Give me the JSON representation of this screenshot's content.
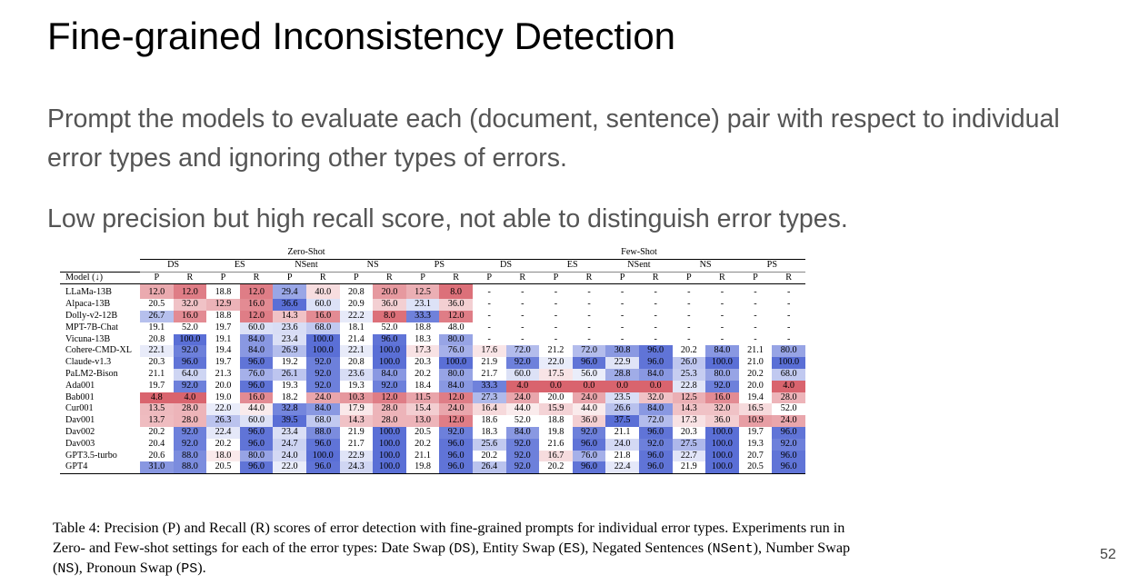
{
  "slide": {
    "title": "Fine-grained Inconsistency Detection",
    "bullet1": "Prompt the models to evaluate each (document, sentence) pair with respect to individual error types and ignoring other types of errors.",
    "bullet2": "Low precision but high recall score, not able to distinguish error types.",
    "page_number": "52"
  },
  "table": {
    "groups": [
      "Zero-Shot",
      "Few-Shot"
    ],
    "error_types": [
      "DS",
      "ES",
      "NSent",
      "NS",
      "PS"
    ],
    "model_header": "Model (↓)",
    "metrics": [
      "P",
      "R"
    ],
    "colors": {
      "low": "#d9646e",
      "mid": "#ffffff",
      "high": "#5a6fd6"
    },
    "rows": [
      {
        "model": "LLaMa-13B",
        "zero": [
          "12.0",
          "12.0",
          "18.8",
          "12.0",
          "29.4",
          "40.0",
          "20.8",
          "20.0",
          "12.5",
          "8.0"
        ],
        "few": [
          "-",
          "-",
          "-",
          "-",
          "-",
          "-",
          "-",
          "-",
          "-",
          "-"
        ]
      },
      {
        "model": "Alpaca-13B",
        "zero": [
          "20.5",
          "32.0",
          "12.9",
          "16.0",
          "36.6",
          "60.0",
          "20.9",
          "36.0",
          "23.1",
          "36.0"
        ],
        "few": [
          "-",
          "-",
          "-",
          "-",
          "-",
          "-",
          "-",
          "-",
          "-",
          "-"
        ]
      },
      {
        "model": "Dolly-v2-12B",
        "zero": [
          "26.7",
          "16.0",
          "18.8",
          "12.0",
          "14.3",
          "16.0",
          "22.2",
          "8.0",
          "33.3",
          "12.0"
        ],
        "few": [
          "-",
          "-",
          "-",
          "-",
          "-",
          "-",
          "-",
          "-",
          "-",
          "-"
        ]
      },
      {
        "model": "MPT-7B-Chat",
        "zero": [
          "19.1",
          "52.0",
          "19.7",
          "60.0",
          "23.6",
          "68.0",
          "18.1",
          "52.0",
          "18.8",
          "48.0"
        ],
        "few": [
          "-",
          "-",
          "-",
          "-",
          "-",
          "-",
          "-",
          "-",
          "-",
          "-"
        ]
      },
      {
        "model": "Vicuna-13B",
        "zero": [
          "20.8",
          "100.0",
          "19.1",
          "84.0",
          "23.4",
          "100.0",
          "21.4",
          "96.0",
          "18.3",
          "80.0"
        ],
        "few": [
          "-",
          "-",
          "-",
          "-",
          "-",
          "-",
          "-",
          "-",
          "-",
          "-"
        ]
      },
      {
        "model": "Cohere-CMD-XL",
        "zero": [
          "22.1",
          "92.0",
          "19.4",
          "84.0",
          "26.9",
          "100.0",
          "22.1",
          "100.0",
          "17.3",
          "76.0"
        ],
        "few": [
          "17.6",
          "72.0",
          "21.2",
          "72.0",
          "30.8",
          "96.0",
          "20.2",
          "84.0",
          "21.1",
          "80.0"
        ]
      },
      {
        "model": "Claude-v1.3",
        "zero": [
          "20.3",
          "96.0",
          "19.7",
          "96.0",
          "19.2",
          "92.0",
          "20.8",
          "100.0",
          "20.3",
          "100.0"
        ],
        "few": [
          "21.9",
          "92.0",
          "22.0",
          "96.0",
          "22.9",
          "96.0",
          "26.0",
          "100.0",
          "21.0",
          "100.0"
        ]
      },
      {
        "model": "PaLM2-Bison",
        "zero": [
          "21.1",
          "64.0",
          "21.3",
          "76.0",
          "26.1",
          "92.0",
          "23.6",
          "84.0",
          "20.2",
          "80.0"
        ],
        "few": [
          "21.7",
          "60.0",
          "17.5",
          "56.0",
          "28.8",
          "84.0",
          "25.3",
          "80.0",
          "20.2",
          "68.0"
        ]
      },
      {
        "model": "Ada001",
        "zero": [
          "19.7",
          "92.0",
          "20.0",
          "96.0",
          "19.3",
          "92.0",
          "19.3",
          "92.0",
          "18.4",
          "84.0"
        ],
        "few": [
          "33.3",
          "4.0",
          "0.0",
          "0.0",
          "0.0",
          "0.0",
          "22.8",
          "92.0",
          "20.0",
          "4.0"
        ]
      },
      {
        "model": "Bab001",
        "zero": [
          "4.8",
          "4.0",
          "19.0",
          "16.0",
          "18.2",
          "24.0",
          "10.3",
          "12.0",
          "11.5",
          "12.0"
        ],
        "few": [
          "27.3",
          "24.0",
          "20.0",
          "24.0",
          "23.5",
          "32.0",
          "12.5",
          "16.0",
          "19.4",
          "28.0"
        ]
      },
      {
        "model": "Cur001",
        "zero": [
          "13.5",
          "28.0",
          "22.0",
          "44.0",
          "32.8",
          "84.0",
          "17.9",
          "28.0",
          "15.4",
          "24.0"
        ],
        "few": [
          "16.4",
          "44.0",
          "15.9",
          "44.0",
          "26.6",
          "84.0",
          "14.3",
          "32.0",
          "16.5",
          "52.0"
        ]
      },
      {
        "model": "Dav001",
        "zero": [
          "13.7",
          "28.0",
          "26.3",
          "60.0",
          "39.5",
          "68.0",
          "14.3",
          "28.0",
          "13.0",
          "12.0"
        ],
        "few": [
          "18.6",
          "52.0",
          "18.8",
          "36.0",
          "37.5",
          "72.0",
          "17.3",
          "36.0",
          "10.9",
          "24.0"
        ]
      },
      {
        "model": "Dav002",
        "zero": [
          "20.2",
          "92.0",
          "22.4",
          "96.0",
          "23.4",
          "88.0",
          "21.9",
          "100.0",
          "20.5",
          "92.0"
        ],
        "few": [
          "18.3",
          "84.0",
          "19.8",
          "92.0",
          "21.1",
          "96.0",
          "20.3",
          "100.0",
          "19.7",
          "96.0"
        ]
      },
      {
        "model": "Dav003",
        "zero": [
          "20.4",
          "92.0",
          "20.2",
          "96.0",
          "24.7",
          "96.0",
          "21.7",
          "100.0",
          "20.2",
          "96.0"
        ],
        "few": [
          "25.6",
          "92.0",
          "21.6",
          "96.0",
          "24.0",
          "92.0",
          "27.5",
          "100.0",
          "19.3",
          "92.0"
        ]
      },
      {
        "model": "GPT3.5-turbo",
        "zero": [
          "20.6",
          "88.0",
          "18.0",
          "80.0",
          "24.0",
          "100.0",
          "22.9",
          "100.0",
          "21.1",
          "96.0"
        ],
        "few": [
          "20.2",
          "92.0",
          "16.7",
          "76.0",
          "21.8",
          "96.0",
          "22.7",
          "100.0",
          "20.7",
          "96.0"
        ]
      },
      {
        "model": "GPT4",
        "zero": [
          "31.0",
          "88.0",
          "20.5",
          "96.0",
          "22.0",
          "96.0",
          "24.3",
          "100.0",
          "19.8",
          "96.0"
        ],
        "few": [
          "26.4",
          "92.0",
          "20.2",
          "96.0",
          "22.4",
          "96.0",
          "21.9",
          "100.0",
          "20.5",
          "96.0"
        ]
      }
    ]
  },
  "caption": {
    "prefix": "Table 4: Precision (P) and Recall (R) scores of error detection with fine-grained prompts for individual error types. Experiments run in Zero- and Few-shot settings for each of the error types: Date Swap (",
    "ds": "DS",
    "mid1": "), Entity Swap (",
    "es": "ES",
    "mid2": "), Negated Sentences (",
    "nsent": "NSent",
    "mid3": "), Number Swap (",
    "ns": "NS",
    "mid4": "), Pronoun Swap (",
    "ps": "PS",
    "suffix": ")."
  }
}
